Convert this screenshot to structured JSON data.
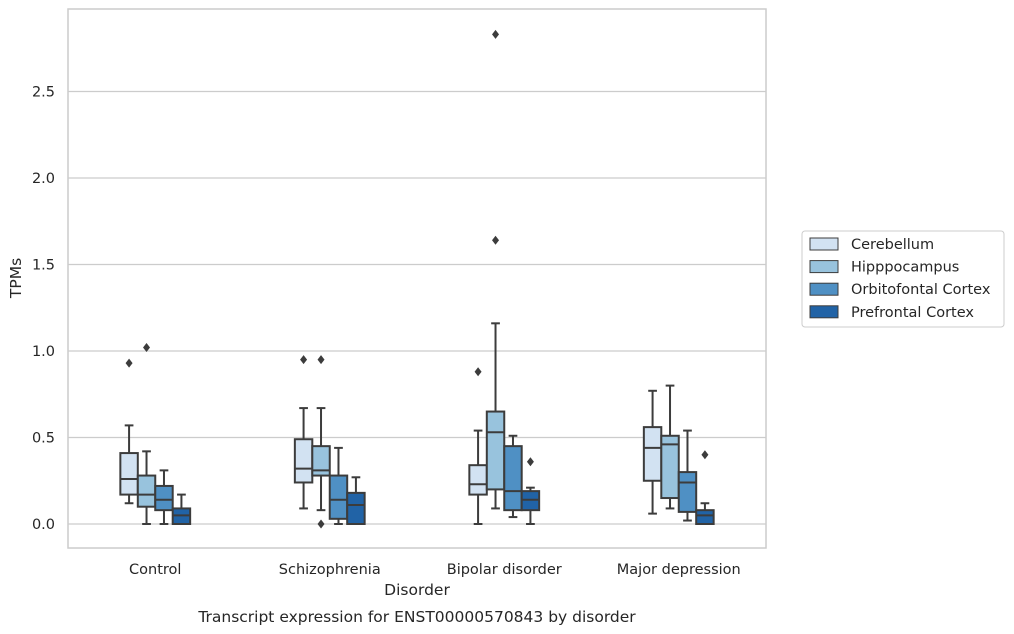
{
  "caption": "Transcript expression for ENST00000570843 by disorder",
  "colors": {
    "Cerebellum": "#d2e2f2",
    "Hipppocampus": "#98c3dd",
    "Orbitofontal Cortex": "#4f90c4",
    "Prefrontal Cortex": "#2163a6",
    "box_edge": "#3c3c3c",
    "grid": "#cccccc",
    "frame": "#cccccc"
  },
  "chart_data": {
    "type": "box",
    "xlabel": "Disorder",
    "ylabel": "TPMs",
    "ylim": [
      -0.14,
      2.98
    ],
    "yticks": [
      "0.0",
      "0.5",
      "1.0",
      "1.5",
      "2.0",
      "2.5"
    ],
    "categories": [
      "Control",
      "Schizophrenia",
      "Bipolar disorder",
      "Major depression"
    ],
    "grid": "horizontal",
    "legend_position": "right",
    "series": [
      {
        "name": "Cerebellum",
        "boxes": [
          {
            "q1": 0.17,
            "median": 0.26,
            "q3": 0.41,
            "whislo": 0.12,
            "whishi": 0.57,
            "fliers": [
              0.93
            ]
          },
          {
            "q1": 0.24,
            "median": 0.32,
            "q3": 0.49,
            "whislo": 0.09,
            "whishi": 0.67,
            "fliers": [
              0.95
            ]
          },
          {
            "q1": 0.17,
            "median": 0.23,
            "q3": 0.34,
            "whislo": 0.0,
            "whishi": 0.54,
            "fliers": [
              0.88
            ]
          },
          {
            "q1": 0.25,
            "median": 0.44,
            "q3": 0.56,
            "whislo": 0.06,
            "whishi": 0.77,
            "fliers": []
          }
        ]
      },
      {
        "name": "Hipppocampus",
        "boxes": [
          {
            "q1": 0.1,
            "median": 0.17,
            "q3": 0.28,
            "whislo": 0.0,
            "whishi": 0.42,
            "fliers": [
              1.02
            ]
          },
          {
            "q1": 0.28,
            "median": 0.31,
            "q3": 0.45,
            "whislo": 0.08,
            "whishi": 0.67,
            "fliers": [
              0.95,
              0.0
            ]
          },
          {
            "q1": 0.2,
            "median": 0.53,
            "q3": 0.65,
            "whislo": 0.09,
            "whishi": 1.16,
            "fliers": [
              1.64,
              2.83
            ]
          },
          {
            "q1": 0.15,
            "median": 0.46,
            "q3": 0.51,
            "whislo": 0.09,
            "whishi": 0.8,
            "fliers": []
          }
        ]
      },
      {
        "name": "Orbitofontal Cortex",
        "boxes": [
          {
            "q1": 0.08,
            "median": 0.14,
            "q3": 0.22,
            "whislo": 0.0,
            "whishi": 0.31,
            "fliers": []
          },
          {
            "q1": 0.03,
            "median": 0.14,
            "q3": 0.28,
            "whislo": 0.0,
            "whishi": 0.44,
            "fliers": []
          },
          {
            "q1": 0.08,
            "median": 0.19,
            "q3": 0.45,
            "whislo": 0.04,
            "whishi": 0.51,
            "fliers": []
          },
          {
            "q1": 0.07,
            "median": 0.24,
            "q3": 0.3,
            "whislo": 0.02,
            "whishi": 0.54,
            "fliers": []
          }
        ]
      },
      {
        "name": "Prefrontal Cortex",
        "boxes": [
          {
            "q1": 0.0,
            "median": 0.05,
            "q3": 0.09,
            "whislo": 0.0,
            "whishi": 0.17,
            "fliers": []
          },
          {
            "q1": 0.0,
            "median": 0.11,
            "q3": 0.18,
            "whislo": 0.0,
            "whishi": 0.27,
            "fliers": []
          },
          {
            "q1": 0.08,
            "median": 0.14,
            "q3": 0.19,
            "whislo": 0.0,
            "whishi": 0.21,
            "fliers": [
              0.36
            ]
          },
          {
            "q1": 0.0,
            "median": 0.05,
            "q3": 0.08,
            "whislo": 0.0,
            "whishi": 0.12,
            "fliers": [
              0.4
            ]
          }
        ]
      }
    ]
  }
}
